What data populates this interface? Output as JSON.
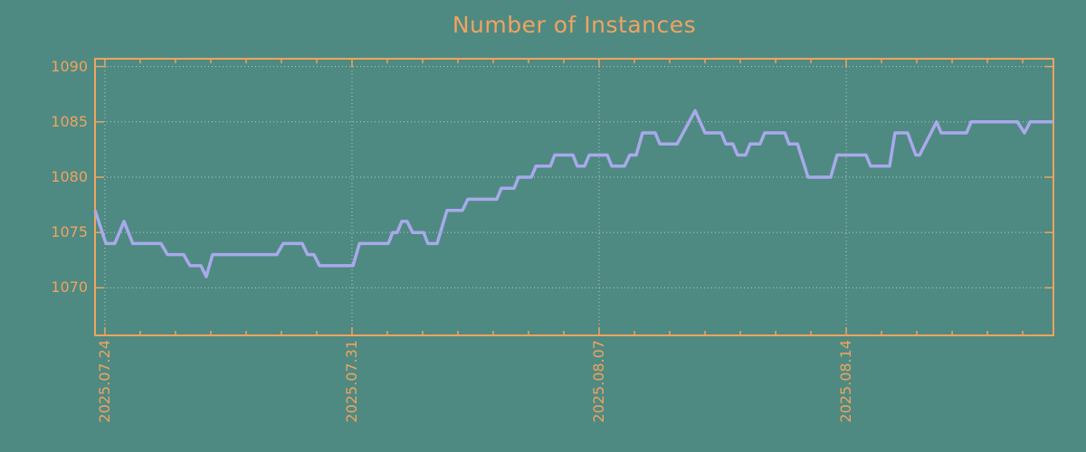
{
  "title": "Number of Instances",
  "colors": {
    "background": "#4e8a82",
    "accent_orange": "#f0a360",
    "line_purple": "#a9a9ec",
    "grid_gray": "#bcc8c4"
  },
  "chart_data": {
    "type": "line",
    "title": "Number of Instances",
    "xlabel": "",
    "ylabel": "",
    "x_unit": "days since 2025.07.24",
    "xlim": [
      -0.28,
      26.87
    ],
    "ylim": [
      1065.7,
      1090.7
    ],
    "grid": true,
    "legend": "none",
    "y_ticks": [
      1070,
      1075,
      1080,
      1085,
      1090
    ],
    "x_major_ticks": [
      {
        "day": 0,
        "label": "2025.07.24"
      },
      {
        "day": 7,
        "label": "2025.07.31"
      },
      {
        "day": 14,
        "label": "2025.08.07"
      },
      {
        "day": 21,
        "label": "2025.08.14"
      }
    ],
    "x_minor_tick_every_days": 1,
    "points": [
      [
        -0.28,
        1077
      ],
      [
        0.03,
        1074
      ],
      [
        0.28,
        1074
      ],
      [
        0.54,
        1076
      ],
      [
        0.79,
        1074
      ],
      [
        1.59,
        1074
      ],
      [
        1.77,
        1073
      ],
      [
        2.23,
        1073
      ],
      [
        2.41,
        1072
      ],
      [
        2.72,
        1072
      ],
      [
        2.87,
        1071
      ],
      [
        3.05,
        1073
      ],
      [
        4.87,
        1073
      ],
      [
        5.05,
        1074
      ],
      [
        5.59,
        1074
      ],
      [
        5.74,
        1073
      ],
      [
        5.92,
        1073
      ],
      [
        6.08,
        1072
      ],
      [
        7.03,
        1072
      ],
      [
        7.21,
        1074
      ],
      [
        8.03,
        1074
      ],
      [
        8.15,
        1075
      ],
      [
        8.28,
        1075
      ],
      [
        8.41,
        1076
      ],
      [
        8.56,
        1076
      ],
      [
        8.72,
        1075
      ],
      [
        9.03,
        1075
      ],
      [
        9.15,
        1074
      ],
      [
        9.41,
        1074
      ],
      [
        9.69,
        1077
      ],
      [
        10.13,
        1077
      ],
      [
        10.28,
        1078
      ],
      [
        11.1,
        1078
      ],
      [
        11.23,
        1079
      ],
      [
        11.59,
        1079
      ],
      [
        11.72,
        1080
      ],
      [
        12.08,
        1080
      ],
      [
        12.21,
        1081
      ],
      [
        12.62,
        1081
      ],
      [
        12.74,
        1082
      ],
      [
        13.26,
        1082
      ],
      [
        13.38,
        1081
      ],
      [
        13.59,
        1081
      ],
      [
        13.72,
        1082
      ],
      [
        14.23,
        1082
      ],
      [
        14.36,
        1081
      ],
      [
        14.72,
        1081
      ],
      [
        14.87,
        1082
      ],
      [
        15.05,
        1082
      ],
      [
        15.23,
        1084
      ],
      [
        15.59,
        1084
      ],
      [
        15.72,
        1083
      ],
      [
        16.21,
        1083
      ],
      [
        16.72,
        1086
      ],
      [
        17.0,
        1084
      ],
      [
        17.46,
        1084
      ],
      [
        17.59,
        1083
      ],
      [
        17.79,
        1083
      ],
      [
        17.92,
        1082
      ],
      [
        18.15,
        1082
      ],
      [
        18.28,
        1083
      ],
      [
        18.56,
        1083
      ],
      [
        18.69,
        1084
      ],
      [
        19.26,
        1084
      ],
      [
        19.38,
        1083
      ],
      [
        19.62,
        1083
      ],
      [
        19.92,
        1080
      ],
      [
        20.56,
        1080
      ],
      [
        20.74,
        1082
      ],
      [
        21.56,
        1082
      ],
      [
        21.69,
        1081
      ],
      [
        22.23,
        1081
      ],
      [
        22.38,
        1084
      ],
      [
        22.74,
        1084
      ],
      [
        22.97,
        1082
      ],
      [
        23.08,
        1082
      ],
      [
        23.56,
        1085
      ],
      [
        23.69,
        1084
      ],
      [
        24.41,
        1084
      ],
      [
        24.54,
        1085
      ],
      [
        25.85,
        1085
      ],
      [
        26.05,
        1084
      ],
      [
        26.21,
        1085
      ],
      [
        26.87,
        1085
      ]
    ]
  }
}
